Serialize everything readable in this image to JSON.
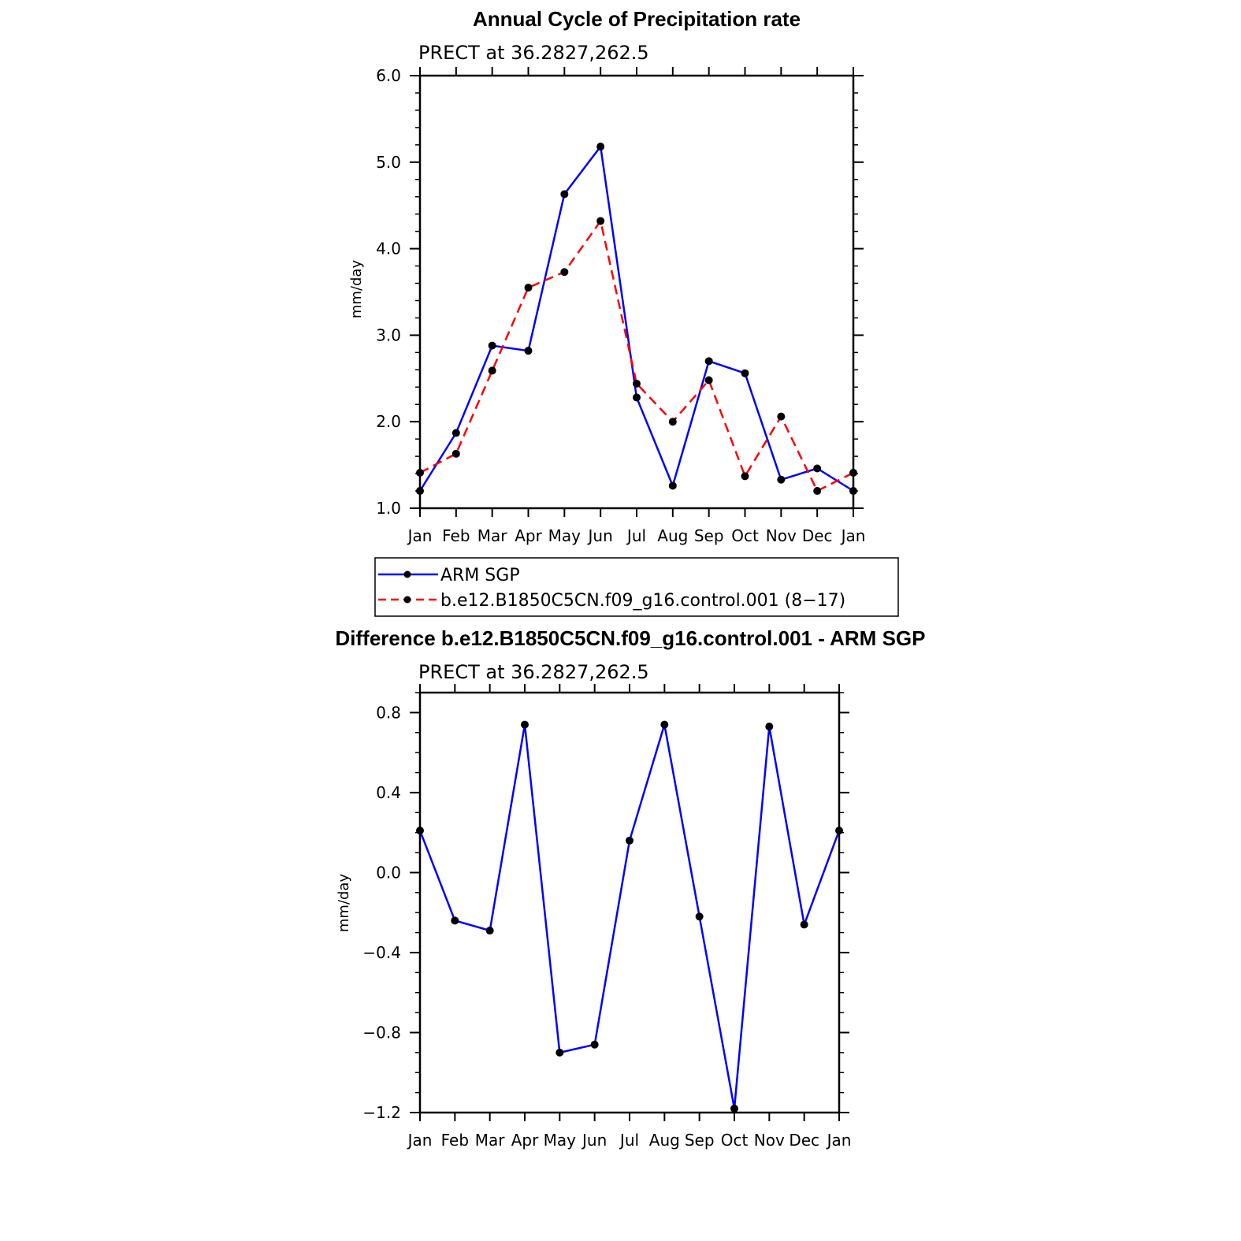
{
  "chart_data": [
    {
      "type": "line",
      "title": "Annual Cycle of Precipitation rate",
      "subtitle": "PRECT at 36.2827,262.5",
      "ylabel": "mm/day",
      "ylim": [
        1.0,
        6.0
      ],
      "yticks": [
        "1.0",
        "2.0",
        "3.0",
        "4.0",
        "5.0",
        "6.0"
      ],
      "categories": [
        "Jan",
        "Feb",
        "Mar",
        "Apr",
        "May",
        "Jun",
        "Jul",
        "Aug",
        "Sep",
        "Oct",
        "Nov",
        "Dec",
        "Jan"
      ],
      "legend_position": "bottom",
      "series": [
        {
          "name": "ARM SGP",
          "color": "#0000ff",
          "dash": "solid",
          "values": [
            1.2,
            1.87,
            2.88,
            2.82,
            4.63,
            5.18,
            2.28,
            1.26,
            2.7,
            2.56,
            1.33,
            1.46,
            1.2
          ]
        },
        {
          "name": "b.e12.B1850C5CN.f09_g16.control.001 (8−17)",
          "color": "#ff0000",
          "dash": "dashed",
          "values": [
            1.41,
            1.63,
            2.59,
            3.55,
            3.73,
            4.32,
            2.44,
            2.0,
            2.48,
            1.37,
            2.06,
            1.2,
            1.41
          ]
        }
      ]
    },
    {
      "type": "line",
      "title": "Difference b.e12.B1850C5CN.f09_g16.control.001 - ARM SGP",
      "subtitle": "PRECT at 36.2827,262.5",
      "ylabel": "mm/day",
      "ylim": [
        -1.2,
        0.9
      ],
      "yticks": [
        "−1.2",
        "−0.8",
        "−0.4",
        "0.0",
        "0.4",
        "0.8"
      ],
      "categories": [
        "Jan",
        "Feb",
        "Mar",
        "Apr",
        "May",
        "Jun",
        "Jul",
        "Aug",
        "Sep",
        "Oct",
        "Nov",
        "Dec",
        "Jan"
      ],
      "series": [
        {
          "color": "#0000ff",
          "dash": "solid",
          "values": [
            0.21,
            -0.24,
            -0.29,
            0.74,
            -0.9,
            -0.86,
            0.16,
            0.74,
            -0.22,
            -1.18,
            0.73,
            -0.26,
            0.21
          ]
        }
      ]
    }
  ]
}
